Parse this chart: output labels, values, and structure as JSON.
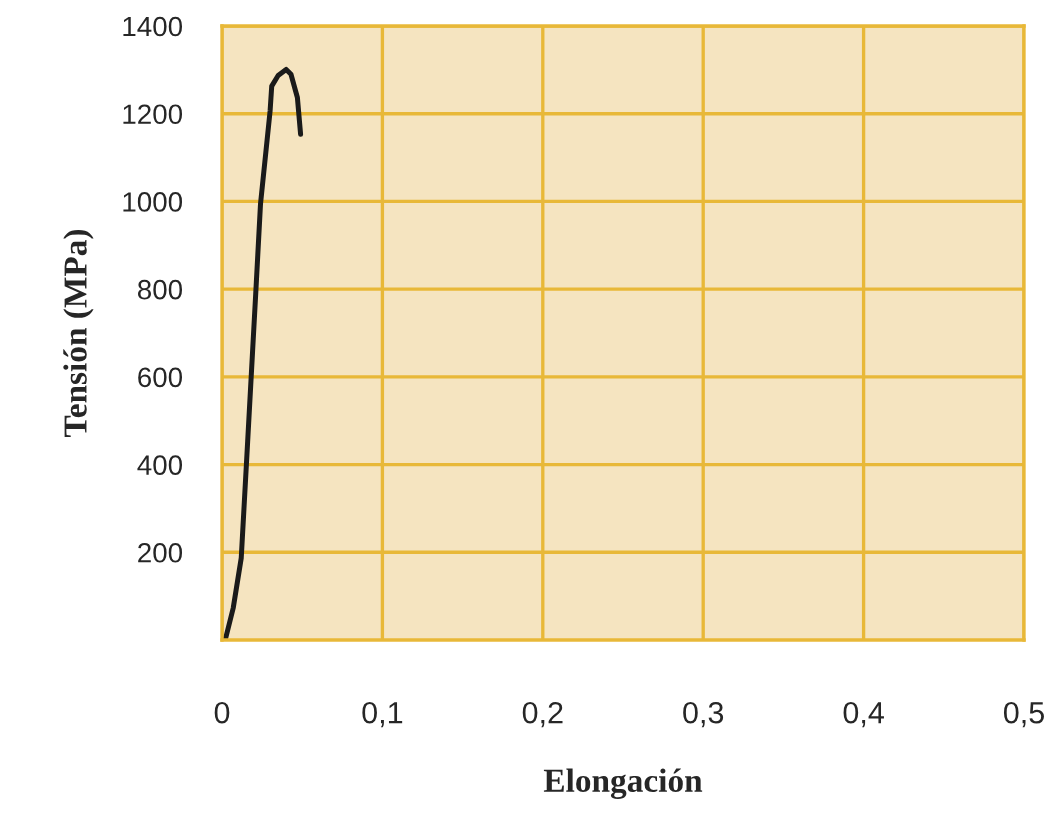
{
  "chart_data": {
    "type": "line",
    "xlabel": "Elongación",
    "ylabel": "Tensión (MPa)",
    "x": [
      0.002,
      0.007,
      0.012,
      0.016,
      0.021,
      0.024,
      0.03,
      0.031,
      0.035,
      0.04,
      0.043,
      0.047,
      0.049
    ],
    "series": [
      {
        "color": "#1a1a1a",
        "values": [
          0,
          73,
          187,
          453,
          788,
          994,
          1207,
          1263,
          1287,
          1301,
          1290,
          1237,
          1153
        ]
      }
    ],
    "xlim": [
      0,
      0.5
    ],
    "ylim": [
      0,
      1400
    ],
    "xticks": [
      0,
      {
        "value": 0.1,
        "label": "0,1"
      },
      {
        "value": 0.2,
        "label": "0,2"
      },
      {
        "value": 0.3,
        "label": "0,3"
      },
      {
        "value": 0.4,
        "label": "0,4"
      },
      {
        "value": 0.5,
        "label": "0,5"
      }
    ],
    "yticks": [
      200,
      400,
      600,
      800,
      1000,
      1200,
      1400
    ],
    "grid": true,
    "legend": false,
    "marker": "none",
    "line_style": "solid"
  }
}
